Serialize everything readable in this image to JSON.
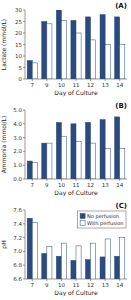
{
  "chart_data": [
    {
      "type": "bar",
      "annotations": [
        "(A)"
      ],
      "x_label": "Day of Culture",
      "y_label": "Lactate (mmol/L)",
      "categories": [
        "7",
        "9",
        "10",
        "11",
        "12",
        "13",
        "14"
      ],
      "series": [
        {
          "color": "#2B4A7E",
          "values": [
            8.0,
            25.0,
            30.0,
            25.5,
            27.0,
            28.0,
            27.0
          ]
        },
        {
          "color": "#FFFFFF",
          "values": [
            7.0,
            24.0,
            25.5,
            20.0,
            17.0,
            15.0,
            15.0
          ]
        }
      ],
      "ylim": [
        0,
        30
      ],
      "yticks": [
        0,
        5,
        10,
        15,
        20,
        25,
        30
      ],
      "grid": false
    },
    {
      "type": "bar",
      "annotations": [
        "(B)"
      ],
      "x_label": "Day of Culture",
      "y_label": "Ammonia (mmol/L)",
      "categories": [
        "7",
        "9",
        "10",
        "11",
        "12",
        "13",
        "14"
      ],
      "series": [
        {
          "color": "#2B4A7E",
          "values": [
            1.3,
            2.6,
            4.1,
            4.0,
            4.1,
            4.3,
            4.5
          ]
        },
        {
          "color": "#FFFFFF",
          "values": [
            1.2,
            2.6,
            3.1,
            2.7,
            2.6,
            2.2,
            2.2
          ]
        }
      ],
      "ylim": [
        0.0,
        5.0
      ],
      "yticks": [
        {
          "value": 0.0,
          "label": "0.0"
        },
        {
          "value": 1.0,
          "label": "1.0"
        },
        {
          "value": 2.0,
          "label": "2.0"
        },
        {
          "value": 3.0,
          "label": "3.0"
        },
        {
          "value": 4.0,
          "label": "4.0"
        },
        {
          "value": 5.0,
          "label": "5.0"
        }
      ],
      "grid": false
    },
    {
      "type": "bar",
      "annotations": [
        "(C)"
      ],
      "x_label": "Day of Culture",
      "y_label": "pH",
      "categories": [
        "7",
        "9",
        "10",
        "11",
        "12",
        "13",
        "14"
      ],
      "series": [
        {
          "name": "No perfusion",
          "color": "#2B4A7E",
          "values": [
            7.48,
            6.97,
            6.93,
            6.87,
            6.88,
            6.92,
            6.93
          ]
        },
        {
          "name": "With perfusion",
          "color": "#FFFFFF",
          "values": [
            7.42,
            7.07,
            7.12,
            7.08,
            7.12,
            7.18,
            7.2
          ]
        }
      ],
      "ylim": [
        6.6,
        7.6
      ],
      "yticks": [
        6.6,
        6.8,
        {
          "value": 7.0,
          "label": "7.0"
        },
        7.2,
        7.4,
        7.6
      ],
      "grid": false,
      "legend": "upper right"
    }
  ]
}
